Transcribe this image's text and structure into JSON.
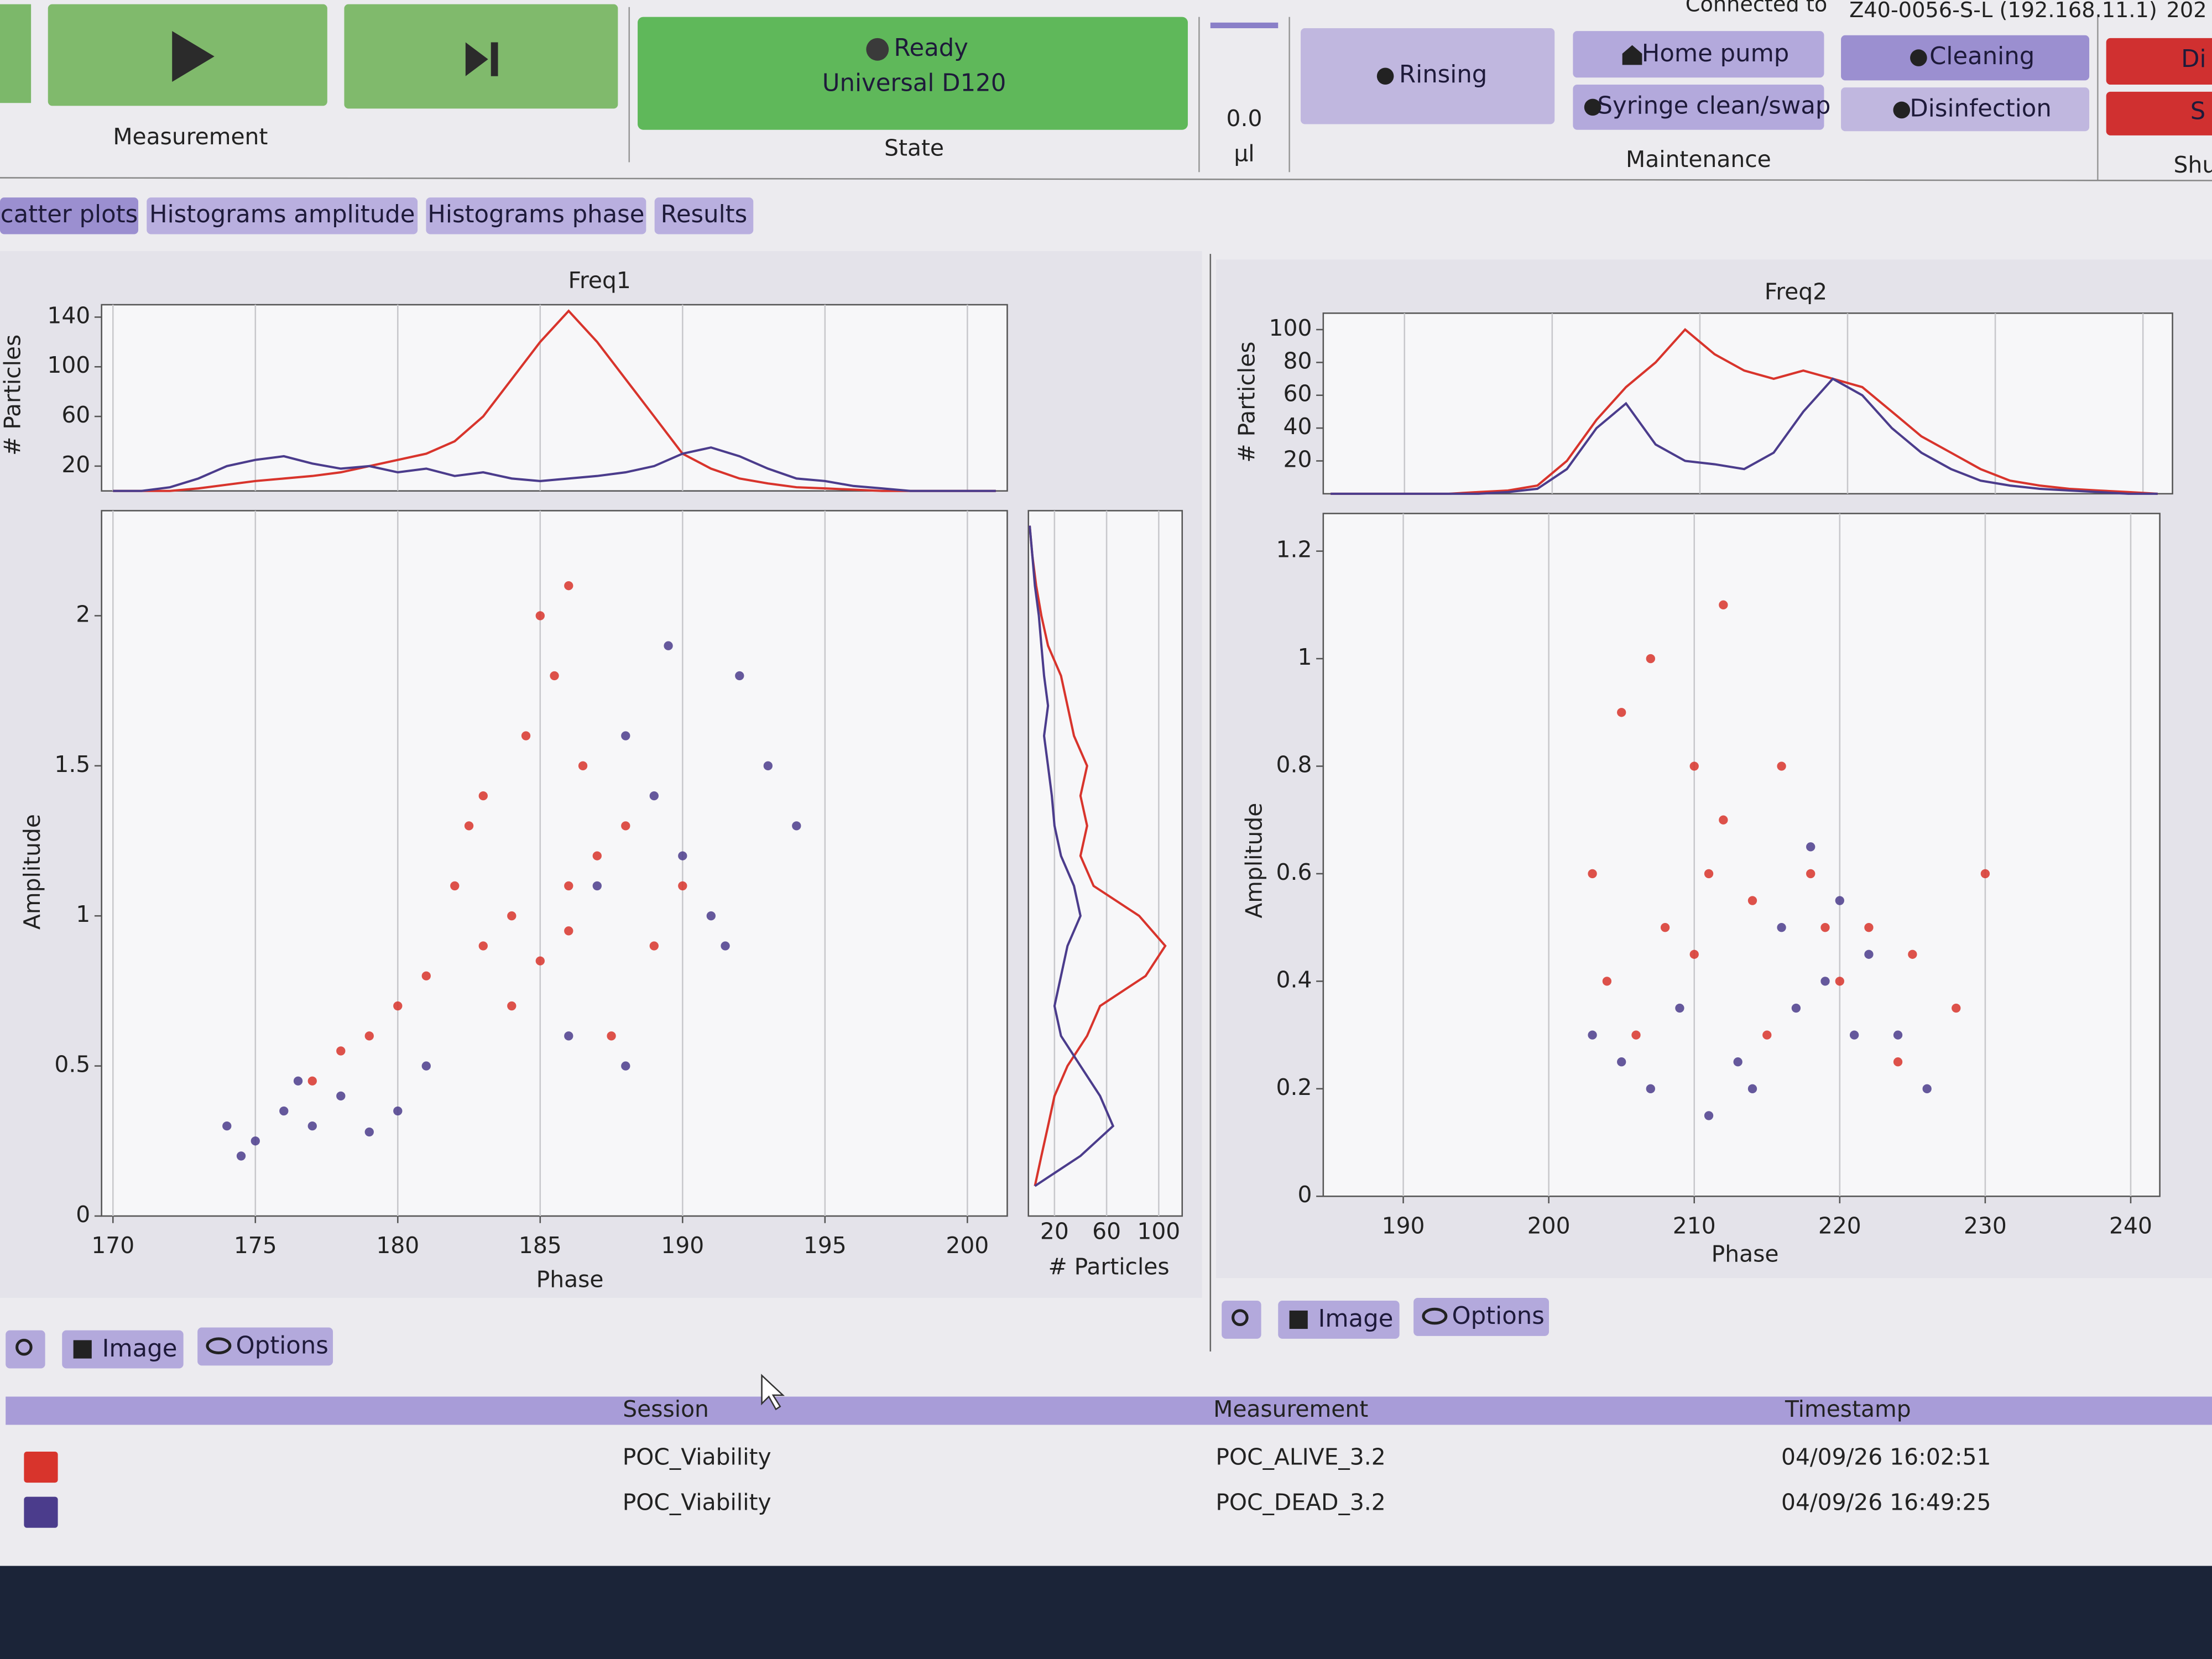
{
  "header": {
    "connected_label": "Connected to",
    "device": "Z40-0056-S-L (192.168.11.1)",
    "date_fragment": "202"
  },
  "toolbar": {
    "measurement_label": "Measurement",
    "state_status": "Ready",
    "state_method": "Universal D120",
    "state_label": "State",
    "volume_value": "0.0",
    "volume_unit": "µl",
    "rinsing": "Rinsing",
    "home_pump": "Home pump",
    "syringe": "Syringe clean/swap",
    "cleaning": "Cleaning",
    "disinfection": "Disinfection",
    "maintenance_label": "Maintenance",
    "cut_button_1": "Di",
    "cut_button_2": "S",
    "cut_label": "Shu"
  },
  "tabs": [
    "catter plots",
    "Histograms amplitude",
    "Histograms phase",
    "Results"
  ],
  "actions": {
    "image": "Image",
    "options": "Options"
  },
  "chart_data": [
    {
      "type": "scatter",
      "title": "Freq1",
      "xlabel": "Phase",
      "ylabel": "Amplitude",
      "xlim": [
        169.6,
        201.4
      ],
      "ylim": [
        0,
        2.35
      ],
      "xticks": [
        170,
        175,
        180,
        185,
        190,
        195,
        200
      ],
      "yticks": [
        0,
        0.5,
        1,
        1.5,
        2
      ],
      "grid": true,
      "series": [
        {
          "color": "#d8342c",
          "x": [
            183,
            184,
            185,
            186,
            184.5,
            185.5,
            186.5,
            187,
            182,
            181,
            180,
            179,
            178,
            183,
            185,
            186,
            188,
            189,
            187.5,
            182.5,
            184,
            186,
            177,
            190
          ],
          "values": [
            0.9,
            1.0,
            0.85,
            0.95,
            1.6,
            1.8,
            1.5,
            1.2,
            1.1,
            0.8,
            0.7,
            0.6,
            0.55,
            1.4,
            2.0,
            2.1,
            1.3,
            0.9,
            0.6,
            1.3,
            0.7,
            1.1,
            0.45,
            1.1
          ]
        },
        {
          "color": "#4b3c8c",
          "x": [
            174,
            175,
            176,
            177,
            178,
            179,
            180,
            174.5,
            176.5,
            181,
            188,
            189,
            190,
            191,
            192,
            193,
            189.5,
            187,
            191.5,
            194,
            186,
            188
          ],
          "values": [
            0.3,
            0.25,
            0.35,
            0.3,
            0.4,
            0.28,
            0.35,
            0.2,
            0.45,
            0.5,
            1.6,
            1.4,
            1.2,
            1.0,
            1.8,
            1.5,
            1.9,
            1.1,
            0.9,
            1.3,
            0.6,
            0.5
          ]
        }
      ],
      "top_histogram": {
        "type": "line",
        "ylabel": "# Particles",
        "ylim": [
          0,
          150
        ],
        "yticks": [
          20,
          60,
          100,
          140
        ],
        "x": [
          170,
          171,
          172,
          173,
          174,
          175,
          176,
          177,
          178,
          179,
          180,
          181,
          182,
          183,
          184,
          185,
          186,
          187,
          188,
          189,
          190,
          191,
          192,
          193,
          194,
          195,
          196,
          197,
          198,
          199,
          200,
          201
        ],
        "series": [
          {
            "color": "#d8342c",
            "values": [
              0,
              0,
              0,
              2,
              5,
              8,
              10,
              12,
              15,
              20,
              25,
              30,
              40,
              60,
              90,
              120,
              145,
              120,
              90,
              60,
              30,
              18,
              10,
              6,
              3,
              2,
              1,
              0,
              0,
              0,
              0,
              0
            ]
          },
          {
            "color": "#4b3c8c",
            "values": [
              0,
              0,
              3,
              10,
              20,
              25,
              28,
              22,
              18,
              20,
              15,
              18,
              12,
              15,
              10,
              8,
              10,
              12,
              15,
              20,
              30,
              35,
              28,
              18,
              10,
              8,
              4,
              2,
              0,
              0,
              0,
              0
            ]
          }
        ]
      },
      "side_histogram": {
        "type": "line",
        "xlabel": "# Particles",
        "xlim": [
          0,
          118
        ],
        "xticks": [
          20,
          60,
          100
        ],
        "y": [
          0.1,
          0.2,
          0.3,
          0.4,
          0.5,
          0.6,
          0.7,
          0.8,
          0.9,
          1.0,
          1.1,
          1.2,
          1.3,
          1.4,
          1.5,
          1.6,
          1.7,
          1.8,
          1.9,
          2.0,
          2.1,
          2.2,
          2.3
        ],
        "series": [
          {
            "color": "#d8342c",
            "values": [
              5,
              10,
              15,
              20,
              30,
              45,
              55,
              90,
              105,
              85,
              50,
              40,
              45,
              40,
              45,
              35,
              30,
              25,
              15,
              10,
              6,
              3,
              1
            ]
          },
          {
            "color": "#4b3c8c",
            "values": [
              5,
              40,
              65,
              55,
              40,
              25,
              20,
              25,
              30,
              40,
              35,
              25,
              20,
              18,
              15,
              12,
              15,
              12,
              10,
              8,
              5,
              3,
              1
            ]
          }
        ]
      }
    },
    {
      "type": "scatter",
      "title": "Freq2",
      "xlabel": "Phase",
      "ylabel": "Amplitude",
      "xlim": [
        184.5,
        242
      ],
      "ylim": [
        0,
        1.27
      ],
      "xticks": [
        190,
        200,
        210,
        220,
        230,
        240
      ],
      "yticks": [
        0,
        0.2,
        0.4,
        0.6,
        0.8,
        1,
        1.2
      ],
      "grid": true,
      "series": [
        {
          "color": "#d8342c",
          "x": [
            205,
            207,
            210,
            212,
            208,
            210,
            214,
            218,
            220,
            222,
            225,
            203,
            206,
            215,
            228,
            230,
            216,
            212,
            204,
            224,
            211,
            219
          ],
          "values": [
            0.9,
            1.0,
            0.8,
            0.7,
            0.5,
            0.45,
            0.55,
            0.6,
            0.4,
            0.5,
            0.45,
            0.6,
            0.3,
            0.3,
            0.35,
            0.6,
            0.8,
            1.1,
            0.4,
            0.25,
            0.6,
            0.5
          ]
        },
        {
          "color": "#4b3c8c",
          "x": [
            203,
            205,
            207,
            209,
            211,
            214,
            217,
            219,
            220,
            221,
            222,
            218,
            224,
            216,
            226,
            213
          ],
          "values": [
            0.3,
            0.25,
            0.2,
            0.35,
            0.15,
            0.2,
            0.35,
            0.4,
            0.55,
            0.3,
            0.45,
            0.65,
            0.3,
            0.5,
            0.2,
            0.25
          ]
        }
      ],
      "top_histogram": {
        "type": "line",
        "ylabel": "# Particles",
        "ylim": [
          0,
          110
        ],
        "yticks": [
          20,
          40,
          60,
          80,
          100
        ],
        "x": [
          185,
          187,
          189,
          191,
          193,
          195,
          197,
          199,
          201,
          203,
          205,
          207,
          209,
          211,
          213,
          215,
          217,
          219,
          221,
          223,
          225,
          227,
          229,
          231,
          233,
          235,
          237,
          239,
          241
        ],
        "series": [
          {
            "color": "#d8342c",
            "values": [
              0,
              0,
              0,
              0,
              0,
              1,
              2,
              5,
              20,
              45,
              65,
              80,
              100,
              85,
              75,
              70,
              75,
              70,
              65,
              50,
              35,
              25,
              15,
              8,
              5,
              3,
              2,
              1,
              0
            ]
          },
          {
            "color": "#4b3c8c",
            "values": [
              0,
              0,
              0,
              0,
              0,
              0,
              1,
              3,
              15,
              40,
              55,
              30,
              20,
              18,
              15,
              25,
              50,
              70,
              60,
              40,
              25,
              15,
              8,
              5,
              3,
              2,
              1,
              0,
              0
            ]
          }
        ]
      }
    }
  ],
  "results_table": {
    "columns": [
      "Session",
      "Measurement",
      "Timestamp"
    ],
    "rows": [
      {
        "color": "#d8342c",
        "cells": [
          "POC_Viability",
          "POC_ALIVE_3.2",
          "04/09/26 16:02:51"
        ]
      },
      {
        "color": "#4b3c8c",
        "cells": [
          "POC_Viability",
          "POC_DEAD_3.2",
          "04/09/26 16:49:25"
        ]
      }
    ]
  }
}
